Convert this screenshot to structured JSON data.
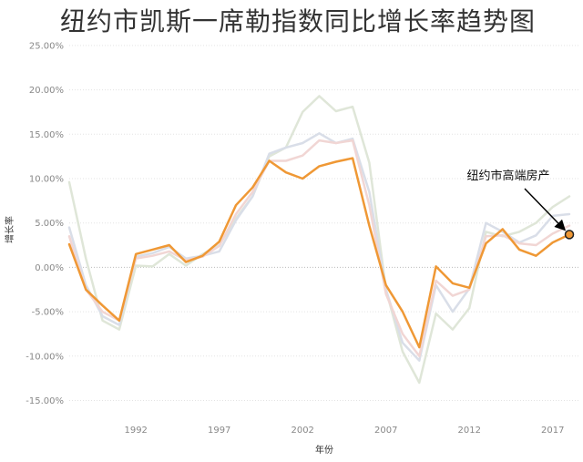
{
  "title": "纽约市凯斯一席勒指数同比增长率趋势图",
  "chart_data": {
    "type": "line",
    "title": "纽约市凯斯一席勒指数同比增长率趋势图",
    "xlabel": "年份",
    "ylabel": "增长率",
    "xlim": [
      1988,
      2018.6
    ],
    "ylim": [
      -17,
      25.5
    ],
    "x_ticks": [
      1992,
      1997,
      2002,
      2007,
      2012,
      2017
    ],
    "y_ticks": [
      -15,
      -10,
      -5,
      0,
      5,
      10,
      15,
      20,
      25
    ],
    "y_tick_labels": [
      "-15.00%",
      "-10.00%",
      "-5.00%",
      "0.00%",
      "5.00%",
      "10.00%",
      "15.00%",
      "20.00%",
      "25.00%"
    ],
    "x_tick_labels": [
      "1992",
      "1997",
      "2002",
      "2007",
      "2012",
      "2017"
    ],
    "grid": true,
    "annotation": {
      "text": "纽约市高端房产",
      "target_x": 2018,
      "target_y": 3.7
    },
    "series": [
      {
        "color": "#dfe6d8",
        "width": 2.5,
        "x": [
          1988,
          1989,
          1990,
          1991,
          1992,
          1993,
          1994,
          1995,
          1996,
          1997,
          1998,
          1999,
          2000,
          2001,
          2002,
          2003,
          2004,
          2005,
          2006,
          2007,
          2008,
          2009,
          2010,
          2011,
          2012,
          2013,
          2014,
          2015,
          2016,
          2017,
          2018
        ],
        "y": [
          9.6,
          1.0,
          -6.0,
          -7.0,
          0.2,
          0.1,
          1.5,
          0.2,
          1.5,
          2.5,
          5.5,
          8.0,
          12.5,
          13.5,
          17.5,
          19.3,
          17.6,
          18.1,
          11.8,
          -2.5,
          -9.5,
          -13.0,
          -5.2,
          -7.0,
          -4.6,
          4.0,
          3.5,
          4.0,
          5.0,
          6.8,
          8.0
        ]
      },
      {
        "color": "#d9dee8",
        "width": 2.5,
        "x": [
          1988,
          1989,
          1990,
          1991,
          1992,
          1993,
          1994,
          1995,
          1996,
          1997,
          1998,
          1999,
          2000,
          2001,
          2002,
          2003,
          2004,
          2005,
          2006,
          2007,
          2008,
          2009,
          2010,
          2011,
          2012,
          2013,
          2014,
          2015,
          2016,
          2017,
          2018
        ],
        "y": [
          4.5,
          -2.0,
          -5.5,
          -6.5,
          1.2,
          1.6,
          2.3,
          1.0,
          1.3,
          1.8,
          5.3,
          8.0,
          12.8,
          13.5,
          14.0,
          15.1,
          14.0,
          14.5,
          8.5,
          -2.5,
          -8.5,
          -10.5,
          -2.0,
          -5.0,
          -2.4,
          5.0,
          4.0,
          2.8,
          3.6,
          5.8,
          6.0
        ]
      },
      {
        "color": "#f1d6d4",
        "width": 2.5,
        "x": [
          1988,
          1989,
          1990,
          1991,
          1992,
          1993,
          1994,
          1995,
          1996,
          1997,
          1998,
          1999,
          2000,
          2001,
          2002,
          2003,
          2004,
          2005,
          2006,
          2007,
          2008,
          2009,
          2010,
          2011,
          2012,
          2013,
          2014,
          2015,
          2016,
          2017,
          2018
        ],
        "y": [
          3.5,
          -2.5,
          -5.0,
          -6.0,
          1.0,
          1.3,
          1.8,
          0.8,
          1.2,
          2.4,
          6.0,
          8.5,
          12.0,
          12.0,
          12.6,
          14.3,
          14.0,
          14.3,
          7.0,
          -3.0,
          -7.5,
          -10.0,
          -1.5,
          -3.2,
          -2.5,
          3.5,
          3.6,
          2.7,
          2.5,
          3.8,
          4.7
        ]
      },
      {
        "color": "#ef9835",
        "width": 2.5,
        "x": [
          1988,
          1989,
          1990,
          1991,
          1992,
          1993,
          1994,
          1995,
          1996,
          1997,
          1998,
          1999,
          2000,
          2001,
          2002,
          2003,
          2004,
          2005,
          2006,
          2007,
          2008,
          2009,
          2010,
          2011,
          2012,
          2013,
          2014,
          2015,
          2016,
          2017,
          2018
        ],
        "y": [
          2.6,
          -2.5,
          -4.3,
          -6.0,
          1.5,
          2.0,
          2.5,
          0.6,
          1.3,
          2.9,
          7.0,
          9.0,
          12.0,
          10.7,
          10.0,
          11.4,
          11.9,
          12.3,
          4.7,
          -2.0,
          -5.0,
          -9.0,
          0.1,
          -1.8,
          -2.3,
          2.7,
          4.3,
          2.0,
          1.3,
          2.8,
          3.7
        ]
      }
    ]
  }
}
